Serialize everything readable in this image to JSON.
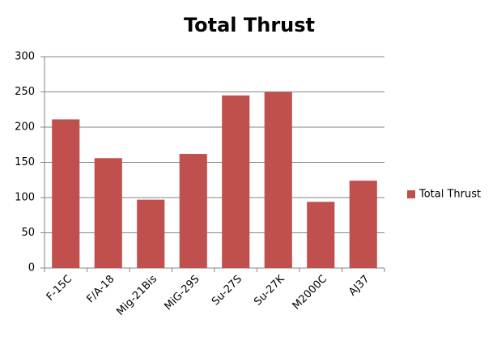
{
  "chart_data": {
    "type": "bar",
    "title": "Total Thrust",
    "categories": [
      "F-15C",
      "F/A-18",
      "Mig-21Bis",
      "MiG-29S",
      "Su-27S",
      "Su-27K",
      "M2000C",
      "AJ37"
    ],
    "series": [
      {
        "name": "Total Thrust",
        "color": "#c0504d",
        "values": [
          211,
          156,
          97,
          162,
          245,
          250,
          94,
          124
        ]
      }
    ],
    "ylim": [
      0,
      300
    ],
    "yticks": [
      0,
      50,
      100,
      150,
      200,
      250,
      300
    ],
    "grid": true,
    "legend": "right"
  }
}
